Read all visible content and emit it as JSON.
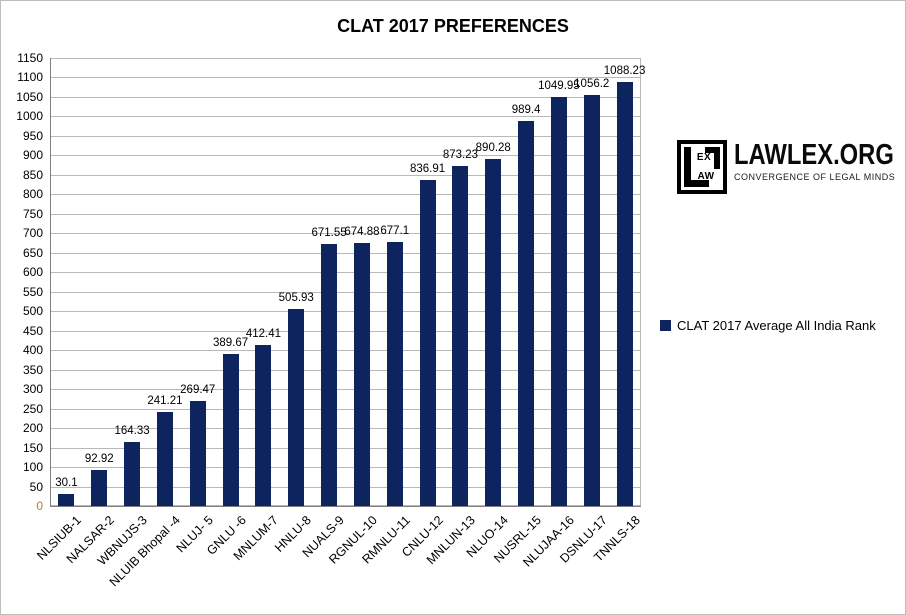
{
  "header": {
    "title": "CLAT 2017 PREFERENCES"
  },
  "legend": {
    "label": "CLAT 2017 Average All India Rank"
  },
  "branding": {
    "logo_text_top": "EX",
    "logo_text_bottom": "AW",
    "site_name": "LAWLEX.ORG",
    "tagline": "CONVERGENCE OF LEGAL MINDS"
  },
  "colors": {
    "bar": "#0d245f",
    "grid": "#b8b8b8",
    "axis": "#7f7f7f",
    "zero_tick": "#bf7c28"
  },
  "chart_data": {
    "type": "bar",
    "title": "CLAT 2017 PREFERENCES",
    "series_name": "CLAT 2017 Average All India Rank",
    "categories": [
      "NLSIUB-1",
      "NALSAR-2",
      "WBNUJS-3",
      "NLUIB Bhopal -4",
      "NLUJ- 5",
      "GNLU -6",
      "MNLUM-7",
      "HNLU-8",
      "NUALS-9",
      "RGNUL-10",
      "RMNLU-11",
      "CNLU-12",
      "MNLUN-13",
      "NLUO-14",
      "NUSRL-15",
      "NLUJAA-16",
      "DSNLU-17",
      "TNNLS-18"
    ],
    "values": [
      30.1,
      92.92,
      164.33,
      241.21,
      269.47,
      389.67,
      412.41,
      505.93,
      671.55,
      674.88,
      677.1,
      836.91,
      873.23,
      890.28,
      989.4,
      1049.95,
      1056.2,
      1088.23
    ],
    "ylim": [
      0,
      1150
    ],
    "ytick_step": 50,
    "grid": true,
    "data_labels": true,
    "legend_position": "right",
    "bar_color": "#0d245f"
  }
}
